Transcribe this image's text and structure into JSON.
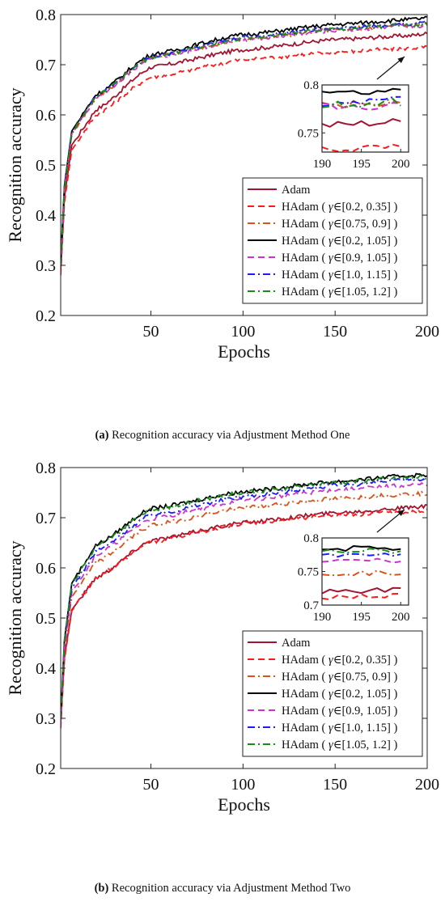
{
  "chart_data": [
    {
      "type": "line",
      "xlabel": "Epochs",
      "ylabel": "Recognition accuracy",
      "xlim": [
        1,
        200
      ],
      "ylim": [
        0.2,
        0.8
      ],
      "xticks": [
        "50",
        "100",
        "150",
        "200"
      ],
      "yticks": [
        "0.2",
        "0.3",
        "0.4",
        "0.5",
        "0.6",
        "0.7",
        "0.8"
      ],
      "grid": false,
      "legend_position": "bottom-right",
      "caption_label": "(a)",
      "caption_text": "Recognition accuracy via Adjustment Method One",
      "series": [
        {
          "name": "Adam",
          "prefix": "Adam",
          "gamma": "",
          "color": "#a2142f",
          "dash": "solid",
          "start": 0.29,
          "mid": [
            [
              20,
              0.61
            ],
            [
              50,
              0.695
            ],
            [
              100,
              0.73
            ],
            [
              150,
              0.75
            ],
            [
              190,
              0.758
            ]
          ],
          "end": 0.762
        },
        {
          "name": "HAdam ( γ∈[0.2, 0.35] )",
          "prefix": "HAdam ( ",
          "gamma": "γ∈[0.2, 0.35] )",
          "color": "#ff1a1a",
          "dash": "dashed",
          "start": 0.28,
          "mid": [
            [
              20,
              0.6
            ],
            [
              50,
              0.675
            ],
            [
              100,
              0.71
            ],
            [
              150,
              0.725
            ],
            [
              190,
              0.733
            ]
          ],
          "end": 0.735
        },
        {
          "name": "HAdam ( γ∈[0.75, 0.9] )",
          "prefix": "HAdam ( ",
          "gamma": "γ∈[0.75, 0.9] )",
          "color": "#d95319",
          "dash": "dashdot",
          "start": 0.3,
          "mid": [
            [
              20,
              0.635
            ],
            [
              50,
              0.715
            ],
            [
              100,
              0.75
            ],
            [
              150,
              0.77
            ],
            [
              190,
              0.779
            ]
          ],
          "end": 0.78
        },
        {
          "name": "HAdam ( γ∈[0.2, 1.05] )",
          "prefix": "HAdam ( ",
          "gamma": "γ∈[0.2, 1.05] )",
          "color": "#000000",
          "dash": "solid",
          "start": 0.31,
          "mid": [
            [
              20,
              0.64
            ],
            [
              50,
              0.72
            ],
            [
              100,
              0.76
            ],
            [
              150,
              0.78
            ],
            [
              190,
              0.79
            ]
          ],
          "end": 0.793
        },
        {
          "name": "HAdam ( γ∈[0.9, 1.05] )",
          "prefix": "HAdam ( ",
          "gamma": "γ∈[0.9, 1.05] )",
          "color": "#cc33cc",
          "dash": "dashed",
          "start": 0.3,
          "mid": [
            [
              20,
              0.635
            ],
            [
              50,
              0.713
            ],
            [
              100,
              0.75
            ],
            [
              150,
              0.768
            ],
            [
              190,
              0.777
            ]
          ],
          "end": 0.778
        },
        {
          "name": "HAdam ( γ∈[1.0, 1.15] )",
          "prefix": "HAdam ( ",
          "gamma": "γ∈[1.0, 1.15] )",
          "color": "#1a1aff",
          "dash": "dashdot",
          "start": 0.3,
          "mid": [
            [
              20,
              0.638
            ],
            [
              50,
              0.716
            ],
            [
              100,
              0.755
            ],
            [
              150,
              0.773
            ],
            [
              190,
              0.782
            ]
          ],
          "end": 0.784
        },
        {
          "name": "HAdam ( γ∈[1.05, 1.2] )",
          "prefix": "HAdam ( ",
          "gamma": "γ∈[1.05, 1.2] )",
          "color": "#1a8c1a",
          "dash": "dashdot",
          "start": 0.3,
          "mid": [
            [
              20,
              0.636
            ],
            [
              50,
              0.715
            ],
            [
              100,
              0.753
            ],
            [
              150,
              0.771
            ],
            [
              190,
              0.78
            ]
          ],
          "end": 0.782
        }
      ],
      "inset": {
        "xlim": [
          190,
          201
        ],
        "ylim": [
          0.73,
          0.8
        ],
        "xticks": [
          "190",
          "195",
          "200"
        ],
        "yticks": [
          "0.75",
          "0.8"
        ]
      }
    },
    {
      "type": "line",
      "xlabel": "Epochs",
      "ylabel": "Recognition accuracy",
      "xlim": [
        1,
        200
      ],
      "ylim": [
        0.2,
        0.8
      ],
      "xticks": [
        "50",
        "100",
        "150",
        "200"
      ],
      "yticks": [
        "0.2",
        "0.3",
        "0.4",
        "0.5",
        "0.6",
        "0.7",
        "0.8"
      ],
      "grid": false,
      "legend_position": "bottom-right",
      "caption_label": "(b)",
      "caption_text": "Recognition accuracy via Adjustment Method Two",
      "series": [
        {
          "name": "Adam",
          "prefix": "Adam",
          "gamma": "",
          "color": "#a2142f",
          "dash": "solid",
          "start": 0.29,
          "mid": [
            [
              20,
              0.58
            ],
            [
              50,
              0.655
            ],
            [
              100,
              0.69
            ],
            [
              150,
              0.71
            ],
            [
              190,
              0.72
            ]
          ],
          "end": 0.722
        },
        {
          "name": "HAdam ( γ∈[0.2, 0.35] )",
          "prefix": "HAdam ( ",
          "gamma": "γ∈[0.2, 0.35] )",
          "color": "#ff1a1a",
          "dash": "dashed",
          "start": 0.28,
          "mid": [
            [
              20,
              0.58
            ],
            [
              50,
              0.652
            ],
            [
              100,
              0.688
            ],
            [
              150,
              0.705
            ],
            [
              190,
              0.712
            ]
          ],
          "end": 0.713
        },
        {
          "name": "HAdam ( γ∈[0.75, 0.9] )",
          "prefix": "HAdam ( ",
          "gamma": "γ∈[0.75, 0.9] )",
          "color": "#d95319",
          "dash": "dashdot",
          "start": 0.3,
          "mid": [
            [
              20,
              0.61
            ],
            [
              50,
              0.685
            ],
            [
              100,
              0.72
            ],
            [
              150,
              0.738
            ],
            [
              190,
              0.747
            ]
          ],
          "end": 0.749
        },
        {
          "name": "HAdam ( γ∈[0.2, 1.05] )",
          "prefix": "HAdam ( ",
          "gamma": "γ∈[0.2, 1.05] )",
          "color": "#000000",
          "dash": "solid",
          "start": 0.3,
          "mid": [
            [
              20,
              0.645
            ],
            [
              50,
              0.718
            ],
            [
              100,
              0.752
            ],
            [
              150,
              0.772
            ],
            [
              190,
              0.784
            ]
          ],
          "end": 0.786
        },
        {
          "name": "HAdam ( γ∈[0.9, 1.05] )",
          "prefix": "HAdam ( ",
          "gamma": "γ∈[0.9, 1.05] )",
          "color": "#cc33cc",
          "dash": "dashed",
          "start": 0.29,
          "mid": [
            [
              20,
              0.625
            ],
            [
              50,
              0.698
            ],
            [
              100,
              0.735
            ],
            [
              150,
              0.755
            ],
            [
              190,
              0.765
            ]
          ],
          "end": 0.767
        },
        {
          "name": "HAdam ( γ∈[1.0, 1.15] )",
          "prefix": "HAdam ( ",
          "gamma": "γ∈[1.0, 1.15] )",
          "color": "#1a1aff",
          "dash": "dashdot",
          "start": 0.3,
          "mid": [
            [
              20,
              0.632
            ],
            [
              50,
              0.706
            ],
            [
              100,
              0.742
            ],
            [
              150,
              0.764
            ],
            [
              190,
              0.775
            ]
          ],
          "end": 0.777
        },
        {
          "name": "HAdam ( γ∈[1.05, 1.2] )",
          "prefix": "HAdam ( ",
          "gamma": "γ∈[1.05, 1.2] )",
          "color": "#1a8c1a",
          "dash": "dashdot",
          "start": 0.3,
          "mid": [
            [
              20,
              0.642
            ],
            [
              50,
              0.716
            ],
            [
              100,
              0.75
            ],
            [
              150,
              0.77
            ],
            [
              190,
              0.78
            ]
          ],
          "end": 0.781
        }
      ],
      "inset": {
        "xlim": [
          190,
          201
        ],
        "ylim": [
          0.7,
          0.8
        ],
        "xticks": [
          "190",
          "195",
          "200"
        ],
        "yticks": [
          "0.7",
          "0.75",
          "0.8"
        ]
      }
    }
  ]
}
